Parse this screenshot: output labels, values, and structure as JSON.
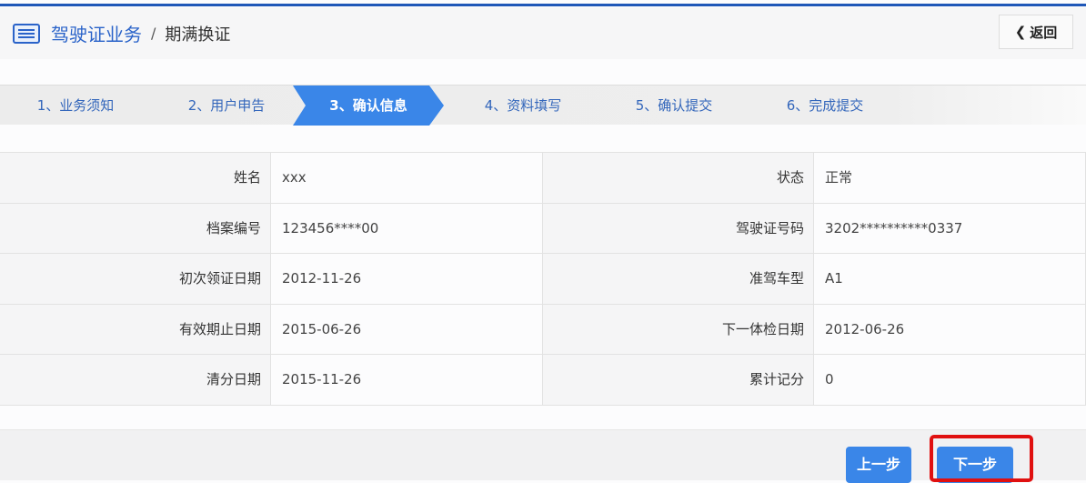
{
  "header": {
    "section": "驾驶证业务",
    "separator": "/",
    "page": "期满换证",
    "back_label": "返回"
  },
  "steps": [
    {
      "label": "1、业务须知"
    },
    {
      "label": "2、用户申告"
    },
    {
      "label": "3、确认信息",
      "active": true
    },
    {
      "label": "4、资料填写"
    },
    {
      "label": "5、确认提交"
    },
    {
      "label": "6、完成提交"
    }
  ],
  "rows": [
    {
      "l1": "姓名",
      "v1": "xxx",
      "l2": "状态",
      "v2": "正常"
    },
    {
      "l1": "档案编号",
      "v1": "123456****00",
      "l2": "驾驶证号码",
      "v2": "3202**********0337"
    },
    {
      "l1": "初次领证日期",
      "v1": "2012-11-26",
      "l2": "准驾车型",
      "v2": "A1"
    },
    {
      "l1": "有效期止日期",
      "v1": "2015-06-26",
      "l2": "下一体检日期",
      "v2": "2012-06-26"
    },
    {
      "l1": "清分日期",
      "v1": "2015-11-26",
      "l2": "累计记分",
      "v2": "0"
    }
  ],
  "buttons": {
    "prev": "上一步",
    "next": "下一步"
  },
  "colors": {
    "accent": "#3a86e8",
    "highlight": "#e01010"
  }
}
